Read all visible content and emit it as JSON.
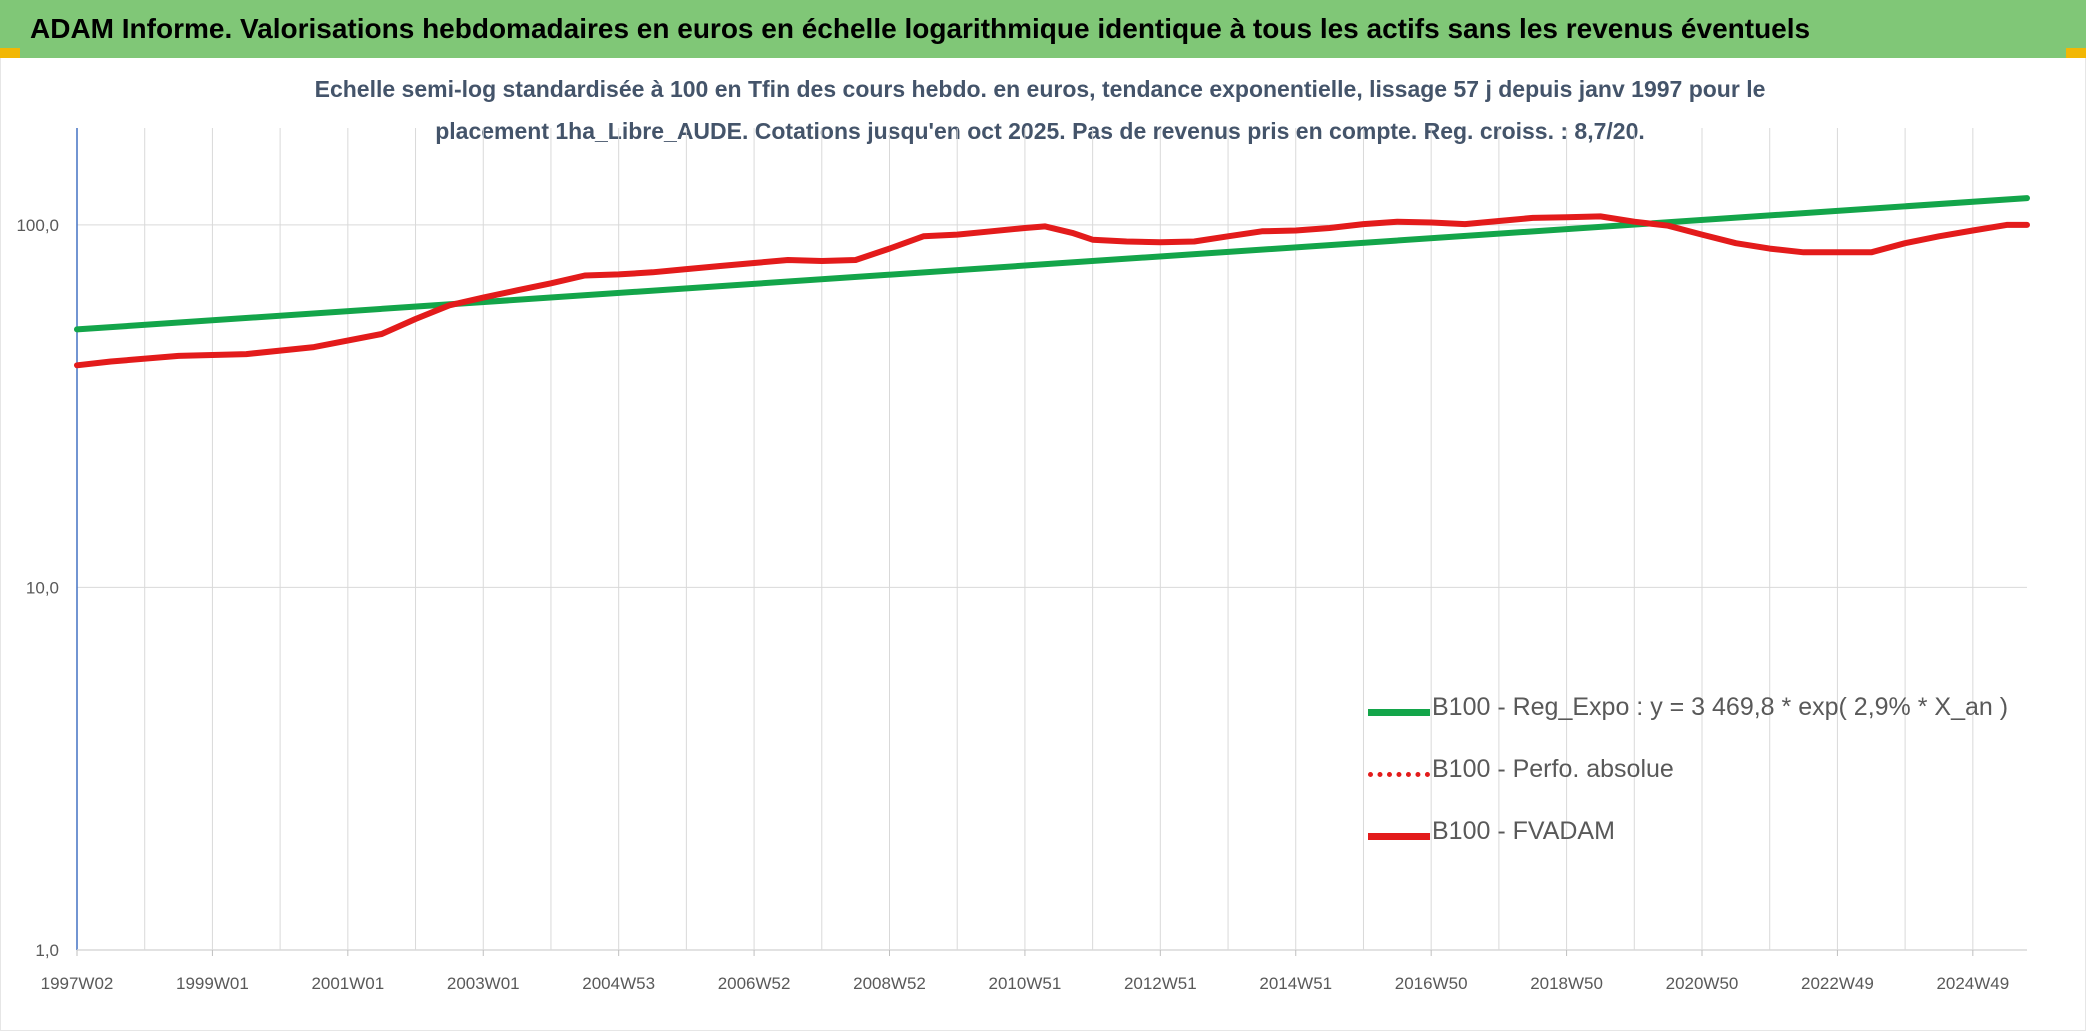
{
  "header": {
    "title": "ADAM Informe. Valorisations hebdomadaires en euros en échelle logarithmique identique à tous les actifs sans les revenus éventuels"
  },
  "colors": {
    "banner": "#80c777",
    "corner_accent": "#f2b705",
    "trend": "#13a54a",
    "price": "#e31b1b",
    "subtitle_text": "#44546a"
  },
  "chart_data": {
    "type": "line",
    "title_line1": "Echelle semi-log standardisée à 100 en Tfin des cours hebdo. en euros, tendance exponentielle, lissage 57 j depuis janv 1997 pour le",
    "title_line2": "placement 1ha_Libre_AUDE. Cotations jusqu'en oct 2025. Pas de revenus pris en compte. Reg. croiss. : 8,7/20.",
    "y_scale": "log",
    "ylim": [
      1,
      185
    ],
    "xlim": [
      1997.0,
      2025.8
    ],
    "grid": true,
    "legend_position": "lower-right",
    "y_ticks": [
      {
        "value": 1,
        "label": "1,0"
      },
      {
        "value": 10,
        "label": "10,0"
      },
      {
        "value": 100,
        "label": "100,0"
      }
    ],
    "x_ticks": [
      {
        "value": 1997.0,
        "label": "1997W02"
      },
      {
        "value": 1999.0,
        "label": "1999W01"
      },
      {
        "value": 2001.0,
        "label": "2001W01"
      },
      {
        "value": 2003.0,
        "label": "2003W01"
      },
      {
        "value": 2005.0,
        "label": "2004W53"
      },
      {
        "value": 2007.0,
        "label": "2006W52"
      },
      {
        "value": 2009.0,
        "label": "2008W52"
      },
      {
        "value": 2011.0,
        "label": "2010W51"
      },
      {
        "value": 2013.0,
        "label": "2012W51"
      },
      {
        "value": 2015.0,
        "label": "2014W51"
      },
      {
        "value": 2017.0,
        "label": "2016W50"
      },
      {
        "value": 2019.0,
        "label": "2018W50"
      },
      {
        "value": 2021.0,
        "label": "2020W50"
      },
      {
        "value": 2023.0,
        "label": "2022W49"
      },
      {
        "value": 2025.0,
        "label": "2024W49"
      }
    ],
    "minor_x_grid": [
      1998.0,
      2000.0,
      2002.0,
      2004.0,
      2006.0,
      2008.0,
      2010.0,
      2012.0,
      2014.0,
      2016.0,
      2018.0,
      2020.0,
      2022.0,
      2024.0
    ],
    "series": [
      {
        "name": "B100 - Reg_Expo : y = 3 469,8 * exp( 2,9% *  X_an )",
        "style": "solid-green",
        "color": "#13a54a",
        "points": [
          [
            1997.0,
            51.5
          ],
          [
            2025.8,
            118.5
          ]
        ]
      },
      {
        "name": "B100 - Perfo. absolue",
        "style": "dotted-red",
        "color": "#e31b1b",
        "points": []
      },
      {
        "name": "B100 - FVADAM",
        "style": "solid-red",
        "color": "#e31b1b",
        "points": [
          [
            1997.0,
            41
          ],
          [
            1997.5,
            42
          ],
          [
            1998.5,
            43.5
          ],
          [
            1999.5,
            44
          ],
          [
            2000.5,
            46
          ],
          [
            2001.5,
            50
          ],
          [
            2002.0,
            55
          ],
          [
            2002.5,
            60
          ],
          [
            2003.0,
            63
          ],
          [
            2003.5,
            66
          ],
          [
            2004.0,
            69
          ],
          [
            2004.5,
            72.5
          ],
          [
            2005.0,
            73
          ],
          [
            2005.5,
            74
          ],
          [
            2006.0,
            75.5
          ],
          [
            2006.5,
            77
          ],
          [
            2007.0,
            78.5
          ],
          [
            2007.5,
            80
          ],
          [
            2008.0,
            79.5
          ],
          [
            2008.5,
            80
          ],
          [
            2009.0,
            86
          ],
          [
            2009.5,
            93
          ],
          [
            2010.0,
            94
          ],
          [
            2010.5,
            96
          ],
          [
            2011.0,
            98
          ],
          [
            2011.3,
            99
          ],
          [
            2011.7,
            95
          ],
          [
            2012.0,
            91
          ],
          [
            2012.5,
            90
          ],
          [
            2013.0,
            89.5
          ],
          [
            2013.5,
            90
          ],
          [
            2014.0,
            93
          ],
          [
            2014.5,
            96
          ],
          [
            2015.0,
            96.5
          ],
          [
            2015.5,
            98
          ],
          [
            2016.0,
            100.5
          ],
          [
            2016.5,
            102
          ],
          [
            2017.0,
            101.5
          ],
          [
            2017.5,
            100.5
          ],
          [
            2018.0,
            102.5
          ],
          [
            2018.5,
            104.5
          ],
          [
            2019.0,
            105
          ],
          [
            2019.5,
            105.5
          ],
          [
            2020.0,
            102
          ],
          [
            2020.5,
            99.5
          ],
          [
            2021.0,
            94
          ],
          [
            2021.5,
            89
          ],
          [
            2022.0,
            86
          ],
          [
            2022.5,
            84
          ],
          [
            2023.0,
            84
          ],
          [
            2023.5,
            84
          ],
          [
            2024.0,
            89
          ],
          [
            2024.5,
            93
          ],
          [
            2025.0,
            96.5
          ],
          [
            2025.5,
            100
          ],
          [
            2025.8,
            100
          ]
        ]
      }
    ]
  }
}
